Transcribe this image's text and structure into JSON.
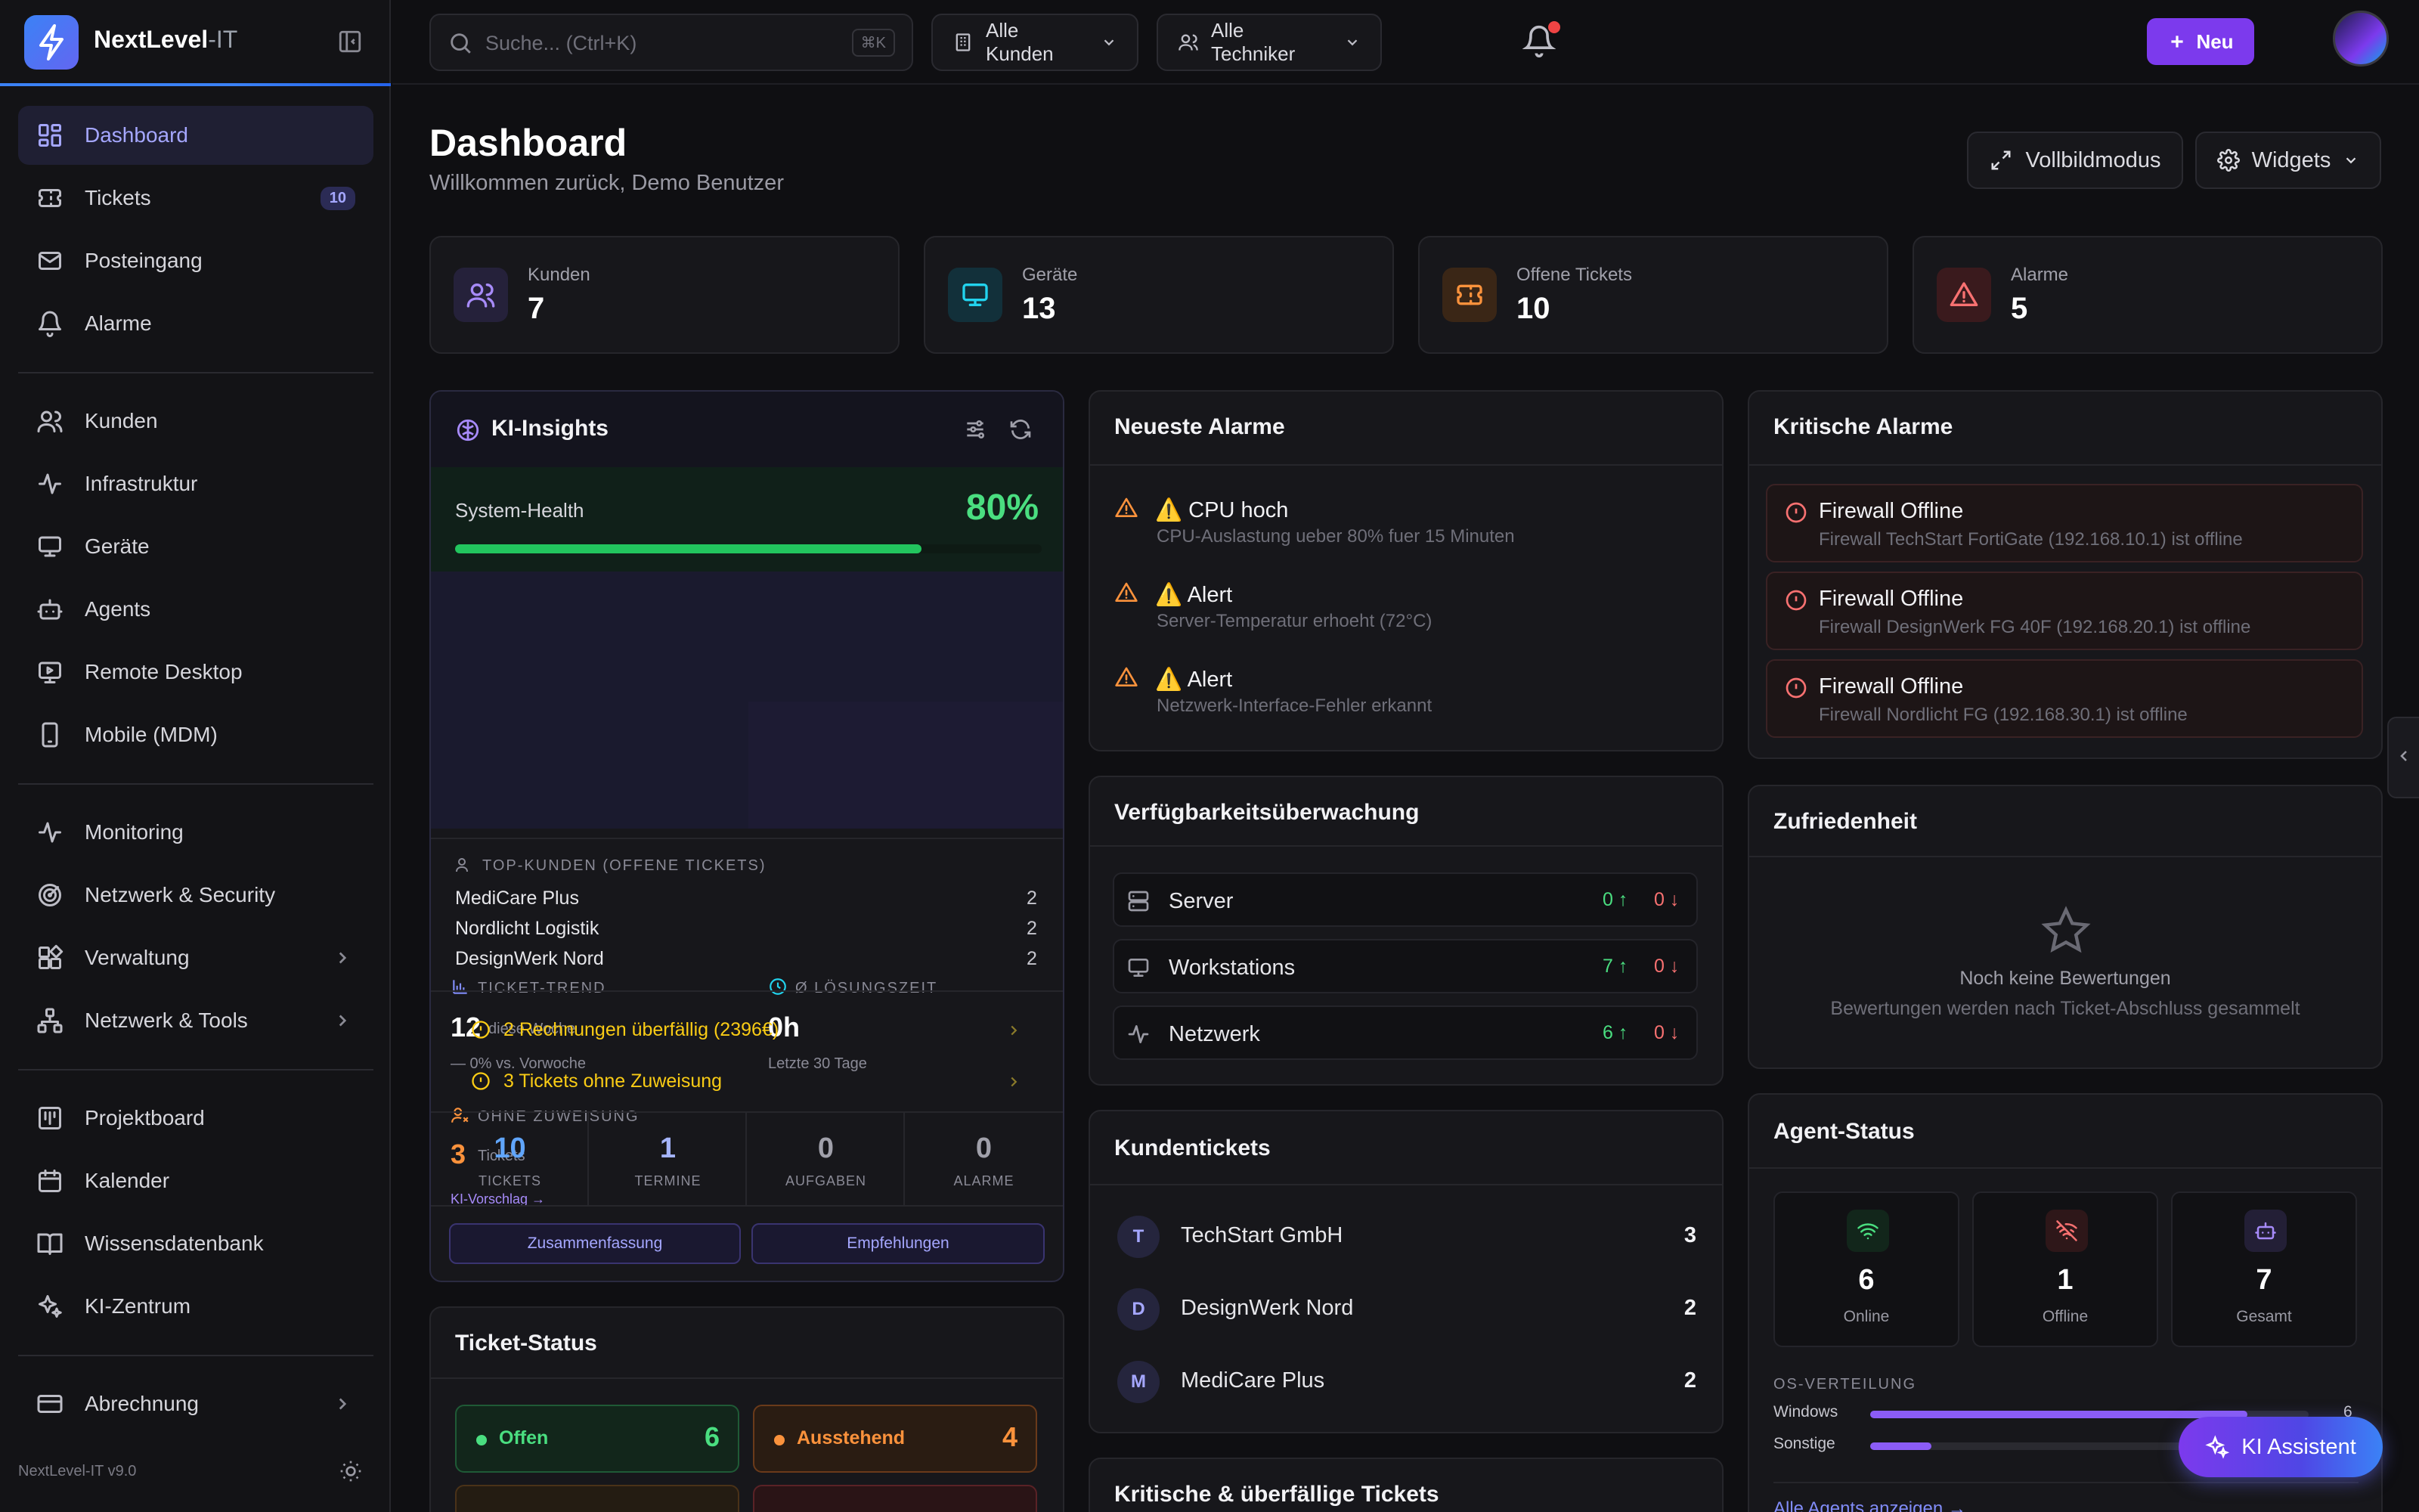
{
  "brand": {
    "name": "NextLevel",
    "suffix": "-IT"
  },
  "nav": {
    "group1": [
      {
        "label": "Dashboard",
        "icon": "layout-grid-icon",
        "active": true
      },
      {
        "label": "Tickets",
        "icon": "ticket-icon",
        "badge": "10"
      },
      {
        "label": "Posteingang",
        "icon": "mail-icon"
      },
      {
        "label": "Alarme",
        "icon": "bell-icon"
      }
    ],
    "group2": [
      {
        "label": "Kunden",
        "icon": "users-icon"
      },
      {
        "label": "Infrastruktur",
        "icon": "activity-icon"
      },
      {
        "label": "Geräte",
        "icon": "monitor-icon"
      },
      {
        "label": "Agents",
        "icon": "bot-icon"
      },
      {
        "label": "Remote Desktop",
        "icon": "screen-share-icon"
      },
      {
        "label": "Mobile (MDM)",
        "icon": "smartphone-icon"
      }
    ],
    "group3": [
      {
        "label": "Monitoring",
        "icon": "activity-icon"
      },
      {
        "label": "Netzwerk & Security",
        "icon": "radar-icon"
      },
      {
        "label": "Verwaltung",
        "icon": "blocks-icon"
      },
      {
        "label": "Netzwerk & Tools",
        "icon": "network-icon"
      }
    ],
    "group4": [
      {
        "label": "Projektboard",
        "icon": "kanban-icon"
      },
      {
        "label": "Kalender",
        "icon": "calendar-icon"
      },
      {
        "label": "Wissensdatenbank",
        "icon": "book-icon"
      },
      {
        "label": "KI-Zentrum",
        "icon": "sparkles-icon"
      }
    ],
    "group5": [
      {
        "label": "Abrechnung",
        "icon": "credit-card-icon"
      }
    ],
    "version": "NextLevel-IT v9.0"
  },
  "topbar": {
    "search_placeholder": "Suche... (Ctrl+K)",
    "search_kbd": "⌘K",
    "customers_filter": "Alle Kunden",
    "technicians_filter": "Alle Techniker",
    "new_label": "Neu"
  },
  "header": {
    "title": "Dashboard",
    "subtitle": "Willkommen zurück, Demo Benutzer",
    "fullscreen_label": "Vollbildmodus",
    "widgets_label": "Widgets"
  },
  "stats": [
    {
      "label": "Kunden",
      "value": "7",
      "icon": "users-icon",
      "color": "#a78bfa",
      "bg": "#25213a"
    },
    {
      "label": "Geräte",
      "value": "13",
      "icon": "monitor-icon",
      "color": "#22d3ee",
      "bg": "#12303a"
    },
    {
      "label": "Offene Tickets",
      "value": "10",
      "icon": "ticket-icon",
      "color": "#fb923c",
      "bg": "#3a2616"
    },
    {
      "label": "Alarme",
      "value": "5",
      "icon": "alert-triangle-icon",
      "color": "#f87171",
      "bg": "#3a1a1d"
    }
  ],
  "insights": {
    "title": "KI-Insights",
    "health_label": "System-Health",
    "health_value": "80%",
    "health_fraction": 0.8,
    "ticket_trend_label": "TICKET-TREND",
    "ticket_trend_value": "12",
    "ticket_trend_unit": "diese Woche",
    "ticket_trend_delta": "— 0% vs. Vorwoche",
    "resolution_label": "Ø LÖSUNGSZEIT",
    "resolution_value": "0h",
    "resolution_sub": "Letzte 30 Tage",
    "unassigned_label": "OHNE ZUWEISUNG",
    "unassigned_value": "3",
    "unassigned_unit": "Tickets",
    "ai_suggest": "KI-Vorschlag →",
    "top_customers_label": "TOP-KUNDEN (OFFENE TICKETS)",
    "top_customers": [
      {
        "name": "MediCare Plus",
        "count": "2"
      },
      {
        "name": "Nordlicht Logistik",
        "count": "2"
      },
      {
        "name": "DesignWerk Nord",
        "count": "2"
      }
    ],
    "warnings": [
      "2 Rechnungen überfällig (2396€)",
      "3 Tickets ohne Zuweisung"
    ],
    "counters": [
      {
        "value": "10",
        "label": "TICKETS",
        "color": "#60a5fa"
      },
      {
        "value": "1",
        "label": "TERMINE",
        "color": "#a5b4fc"
      },
      {
        "value": "0",
        "label": "AUFGABEN",
        "color": "#a0a0aa"
      },
      {
        "value": "0",
        "label": "ALARME",
        "color": "#a0a0aa"
      }
    ],
    "summary_btn": "Zusammenfassung",
    "recommend_btn": "Empfehlungen"
  },
  "ticket_status": {
    "title": "Ticket-Status",
    "items": [
      {
        "label": "Offen",
        "value": "6",
        "color": "#4ade80",
        "bg": "#12261b",
        "border": "#1f5a36"
      },
      {
        "label": "Ausstehend",
        "value": "4",
        "color": "#fb923c",
        "bg": "#2a1c12",
        "border": "#6a3a1a"
      }
    ]
  },
  "latest_alarms": {
    "title": "Neueste Alarme",
    "items": [
      {
        "title": "⚠️ CPU hoch",
        "desc": "CPU-Auslastung ueber 80% fuer 15 Minuten"
      },
      {
        "title": "⚠️ Alert",
        "desc": "Server-Temperatur erhoeht (72°C)"
      },
      {
        "title": "⚠️ Alert",
        "desc": "Netzwerk-Interface-Fehler erkannt"
      }
    ]
  },
  "availability": {
    "title": "Verfügbarkeitsüberwachung",
    "items": [
      {
        "label": "Server",
        "icon": "server-icon",
        "up": "0",
        "down": "0"
      },
      {
        "label": "Workstations",
        "icon": "monitor-icon",
        "up": "7",
        "down": "0"
      },
      {
        "label": "Netzwerk",
        "icon": "activity-icon",
        "up": "6",
        "down": "0"
      }
    ]
  },
  "customer_tickets": {
    "title": "Kundentickets",
    "items": [
      {
        "initial": "T",
        "name": "TechStart GmbH",
        "count": "3"
      },
      {
        "initial": "D",
        "name": "DesignWerk Nord",
        "count": "2"
      },
      {
        "initial": "M",
        "name": "MediCare Plus",
        "count": "2"
      }
    ]
  },
  "overdue": {
    "title": "Kritische & überfällige Tickets"
  },
  "critical_alarms": {
    "title": "Kritische Alarme",
    "items": [
      {
        "title": "Firewall Offline",
        "desc": "Firewall TechStart FortiGate (192.168.10.1) ist offline"
      },
      {
        "title": "Firewall Offline",
        "desc": "Firewall DesignWerk FG 40F (192.168.20.1) ist offline"
      },
      {
        "title": "Firewall Offline",
        "desc": "Firewall Nordlicht FG (192.168.30.1) ist offline"
      }
    ]
  },
  "satisfaction": {
    "title": "Zufriedenheit",
    "empty_title": "Noch keine Bewertungen",
    "empty_desc": "Bewertungen werden nach Ticket-Abschluss gesammelt"
  },
  "agent_status": {
    "title": "Agent-Status",
    "boxes": [
      {
        "value": "6",
        "label": "Online",
        "icon": "wifi-icon",
        "color": "#4ade80",
        "bg": "#12261b"
      },
      {
        "value": "1",
        "label": "Offline",
        "icon": "wifi-off-icon",
        "color": "#f87171",
        "bg": "#2e1719"
      },
      {
        "value": "7",
        "label": "Gesamt",
        "icon": "bot-icon",
        "color": "#a78bfa",
        "bg": "#231f36"
      }
    ],
    "os_label": "OS-VERTEILUNG",
    "os": [
      {
        "label": "Windows",
        "value": "6",
        "fraction": 0.86
      },
      {
        "label": "Sonstige",
        "value": "1",
        "fraction": 0.14
      }
    ],
    "all_agents_link": "Alle Agents anzeigen →"
  },
  "assistant": {
    "label": "KI Assistent"
  }
}
